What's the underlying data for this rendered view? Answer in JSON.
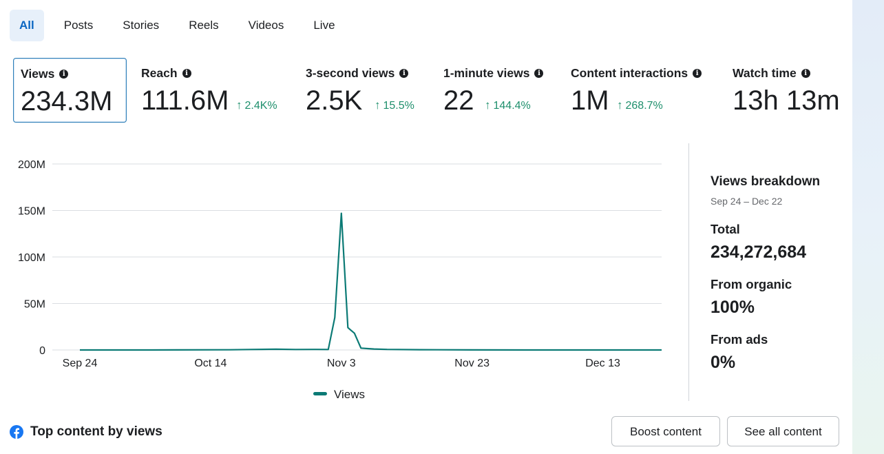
{
  "tabs": [
    "All",
    "Posts",
    "Stories",
    "Reels",
    "Videos",
    "Live"
  ],
  "metrics": [
    {
      "label": "Views",
      "value": "234.3M",
      "change": ""
    },
    {
      "label": "Reach",
      "value": "111.6M",
      "change": "2.4K%"
    },
    {
      "label": "3-second views",
      "value": "2.5K",
      "change": "15.5%"
    },
    {
      "label": "1-minute views",
      "value": "22",
      "change": "144.4%"
    },
    {
      "label": "Content interactions",
      "value": "1M",
      "change": "268.7%"
    },
    {
      "label": "Watch time",
      "value": "13h 13m",
      "change": ""
    }
  ],
  "colors": {
    "accent": "#0a66c2",
    "positive": "#1e8f6c",
    "series": "#0b7a75",
    "facebook": "#1877f2"
  },
  "icons": {
    "info": "info-icon",
    "up": "arrow-up-icon",
    "facebook": "facebook-logo-icon"
  },
  "chart_data": {
    "type": "line",
    "title": "",
    "xlabel": "",
    "ylabel": "",
    "ylim": [
      0,
      200000000
    ],
    "y_ticks": [
      0,
      50000000,
      100000000,
      150000000,
      200000000
    ],
    "y_tick_labels": [
      "0",
      "50M",
      "100M",
      "150M",
      "200M"
    ],
    "x_ticks": [
      "Sep 24",
      "Oct 14",
      "Nov 3",
      "Nov 23",
      "Dec 13"
    ],
    "x_range": [
      "2024-09-24",
      "2024-12-22"
    ],
    "grid": true,
    "legend": "bottom",
    "series": [
      {
        "name": "Views",
        "points": [
          [
            "2024-09-24",
            0
          ],
          [
            "2024-10-05",
            0
          ],
          [
            "2024-10-17",
            200000
          ],
          [
            "2024-10-20",
            500000
          ],
          [
            "2024-10-24",
            800000
          ],
          [
            "2024-10-27",
            500000
          ],
          [
            "2024-10-30",
            600000
          ],
          [
            "2024-11-01",
            500000
          ],
          [
            "2024-11-02",
            35000000
          ],
          [
            "2024-11-03",
            147000000
          ],
          [
            "2024-11-04",
            24000000
          ],
          [
            "2024-11-05",
            18000000
          ],
          [
            "2024-11-06",
            2000000
          ],
          [
            "2024-11-07",
            1500000
          ],
          [
            "2024-11-08",
            1000000
          ],
          [
            "2024-11-10",
            600000
          ],
          [
            "2024-11-15",
            300000
          ],
          [
            "2024-11-23",
            100000
          ],
          [
            "2024-12-01",
            0
          ],
          [
            "2024-12-13",
            0
          ],
          [
            "2024-12-22",
            0
          ]
        ]
      }
    ]
  },
  "breakdown": {
    "title": "Views breakdown",
    "date_range": "Sep 24 – Dec 22",
    "total_label": "Total",
    "total_value": "234,272,684",
    "organic_label": "From organic",
    "organic_value": "100%",
    "ads_label": "From ads",
    "ads_value": "0%"
  },
  "footer": {
    "top_content_label": "Top content by views",
    "boost_label": "Boost content",
    "see_all_label": "See all content"
  }
}
